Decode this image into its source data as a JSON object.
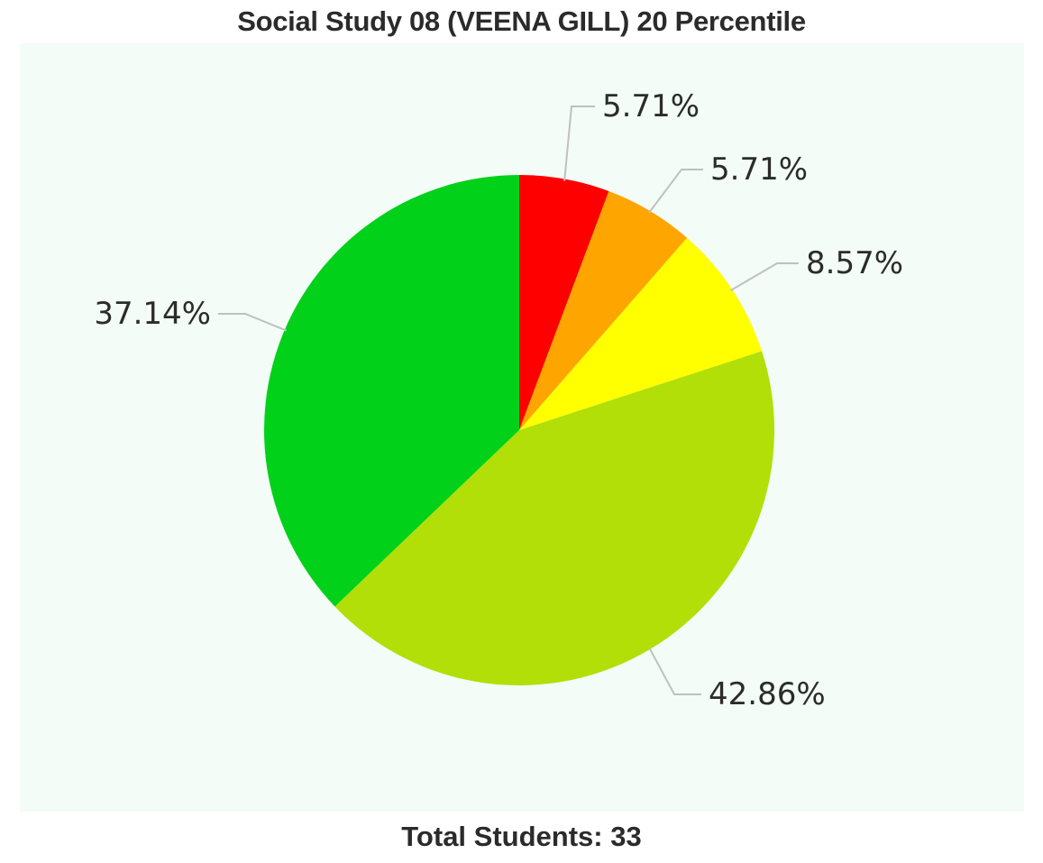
{
  "chart_data": {
    "type": "pie",
    "title": "Social Study 08 (VEENA GILL) 20 Percentile",
    "slices": [
      {
        "label": "5.71%",
        "value": 5.71,
        "color": "#ff0000"
      },
      {
        "label": "5.71%",
        "value": 5.71,
        "color": "#ffa500"
      },
      {
        "label": "8.57%",
        "value": 8.57,
        "color": "#ffff00"
      },
      {
        "label": "42.86%",
        "value": 42.86,
        "color": "#b1df07"
      },
      {
        "label": "37.14%",
        "value": 37.14,
        "color": "#02d11a"
      }
    ],
    "legend": "none"
  },
  "footer": {
    "label": "Total Students:",
    "value": "33"
  },
  "colors": {
    "plot_background": "#f3fcf7",
    "text": "#2b2b2b",
    "connector": "#c0c0c0"
  }
}
